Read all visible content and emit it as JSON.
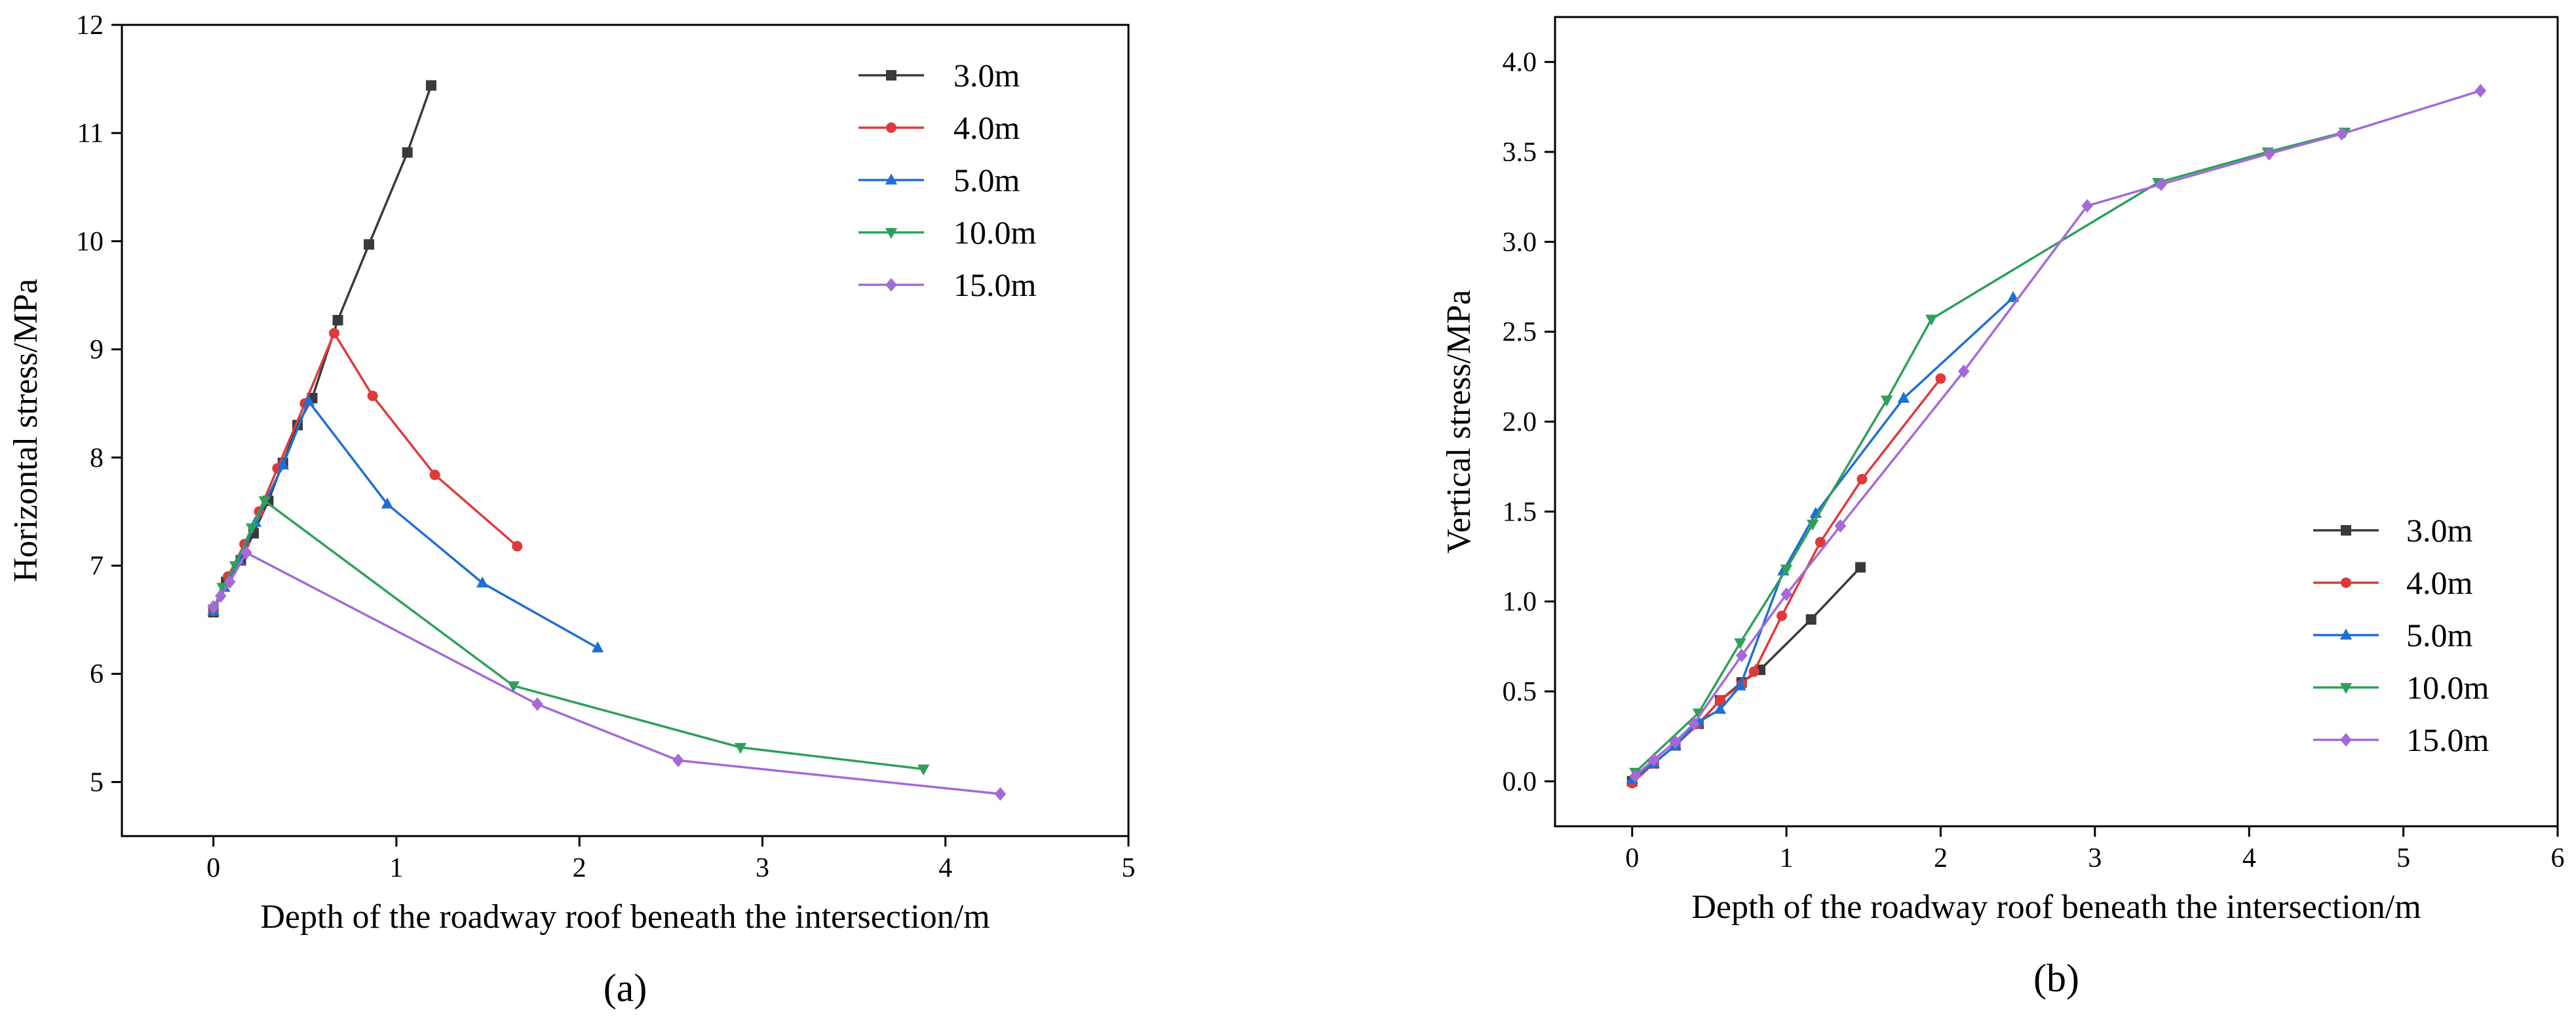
{
  "chart_data": [
    {
      "type": "line",
      "panel_label": "(a)",
      "xlabel": "Depth of the roadway roof beneath the intersection/m",
      "ylabel": "Horizontal stress/MPa",
      "xlim": [
        -0.5,
        5
      ],
      "ylim": [
        4.5,
        12
      ],
      "xticks": [
        0,
        1,
        2,
        3,
        4,
        5
      ],
      "yticks": [
        5,
        6,
        7,
        8,
        9,
        10,
        11,
        12
      ],
      "legend_position": "top-right",
      "grid": false,
      "series": [
        {
          "name": "3.0m",
          "color": "#3a3a3a",
          "marker": "square",
          "x": [
            0.0,
            0.07,
            0.15,
            0.22,
            0.3,
            0.38,
            0.46,
            0.54,
            0.68,
            0.85,
            1.06,
            1.19
          ],
          "y": [
            6.57,
            6.85,
            7.05,
            7.3,
            7.6,
            7.95,
            8.3,
            8.55,
            9.27,
            9.97,
            10.82,
            11.44
          ]
        },
        {
          "name": "4.0m",
          "color": "#e0393b",
          "marker": "circle",
          "x": [
            0.0,
            0.08,
            0.17,
            0.25,
            0.35,
            0.5,
            0.66,
            0.87,
            1.21,
            1.66
          ],
          "y": [
            6.58,
            6.9,
            7.2,
            7.5,
            7.9,
            8.5,
            9.15,
            8.57,
            7.84,
            7.18
          ]
        },
        {
          "name": "5.0m",
          "color": "#1e6fd4",
          "marker": "triangle-up",
          "x": [
            0.0,
            0.06,
            0.14,
            0.23,
            0.38,
            0.52,
            0.95,
            1.47,
            2.1
          ],
          "y": [
            6.58,
            6.8,
            7.05,
            7.4,
            7.93,
            8.52,
            7.57,
            6.84,
            6.24
          ]
        },
        {
          "name": "10.0m",
          "color": "#2ea05a",
          "marker": "triangle-down",
          "x": [
            0.0,
            0.05,
            0.12,
            0.21,
            0.28,
            1.64,
            2.88,
            3.88
          ],
          "y": [
            6.6,
            6.8,
            7.0,
            7.35,
            7.6,
            5.89,
            5.32,
            5.12
          ]
        },
        {
          "name": "15.0m",
          "color": "#a46ad8",
          "marker": "diamond",
          "x": [
            0.0,
            0.04,
            0.09,
            0.18,
            1.77,
            2.54,
            4.3
          ],
          "y": [
            6.62,
            6.72,
            6.85,
            7.12,
            5.72,
            5.2,
            4.89
          ]
        }
      ]
    },
    {
      "type": "line",
      "panel_label": "(b)",
      "xlabel": "Depth of the roadway roof beneath the intersection/m",
      "ylabel": "Vertical stress/MPa",
      "xlim": [
        -0.5,
        6
      ],
      "ylim": [
        -0.25,
        4.25
      ],
      "xticks": [
        0,
        1,
        2,
        3,
        4,
        5,
        6
      ],
      "yticks": [
        "0.0",
        "0.5",
        "1.0",
        "1.5",
        "2.0",
        "2.5",
        "3.0",
        "3.5",
        "4.0"
      ],
      "legend_position": "bottom-right",
      "grid": false,
      "series": [
        {
          "name": "3.0m",
          "color": "#3a3a3a",
          "marker": "square",
          "x": [
            0.0,
            0.14,
            0.28,
            0.43,
            0.57,
            0.71,
            0.83,
            1.16,
            1.48
          ],
          "y": [
            0.0,
            0.1,
            0.2,
            0.32,
            0.45,
            0.55,
            0.62,
            0.9,
            1.19
          ]
        },
        {
          "name": "4.0m",
          "color": "#e0393b",
          "marker": "circle",
          "x": [
            0.0,
            0.14,
            0.28,
            0.43,
            0.57,
            0.71,
            0.79,
            0.97,
            1.22,
            1.49,
            2.0
          ],
          "y": [
            -0.01,
            0.1,
            0.2,
            0.32,
            0.45,
            0.54,
            0.61,
            0.92,
            1.33,
            1.68,
            2.24
          ]
        },
        {
          "name": "5.0m",
          "color": "#1e6fd4",
          "marker": "triangle-up",
          "x": [
            0.0,
            0.14,
            0.28,
            0.43,
            0.57,
            0.7,
            0.98,
            1.19,
            1.76,
            2.47
          ],
          "y": [
            0.01,
            0.1,
            0.2,
            0.33,
            0.4,
            0.53,
            1.17,
            1.49,
            2.13,
            2.69
          ]
        },
        {
          "name": "10.0m",
          "color": "#2ea05a",
          "marker": "triangle-down",
          "x": [
            0.02,
            0.43,
            0.7,
            1.0,
            1.17,
            1.65,
            1.94,
            3.41,
            4.12,
            4.62
          ],
          "y": [
            0.05,
            0.38,
            0.77,
            1.18,
            1.43,
            2.12,
            2.57,
            3.33,
            3.5,
            3.61
          ]
        },
        {
          "name": "15.0m",
          "color": "#a46ad8",
          "marker": "diamond",
          "x": [
            0.02,
            0.14,
            0.28,
            0.4,
            0.71,
            1.0,
            1.35,
            2.15,
            2.95,
            3.43,
            4.13,
            4.6,
            5.5
          ],
          "y": [
            0.03,
            0.12,
            0.22,
            0.32,
            0.7,
            1.04,
            1.42,
            2.28,
            3.2,
            3.32,
            3.49,
            3.6,
            3.84
          ]
        }
      ]
    }
  ]
}
